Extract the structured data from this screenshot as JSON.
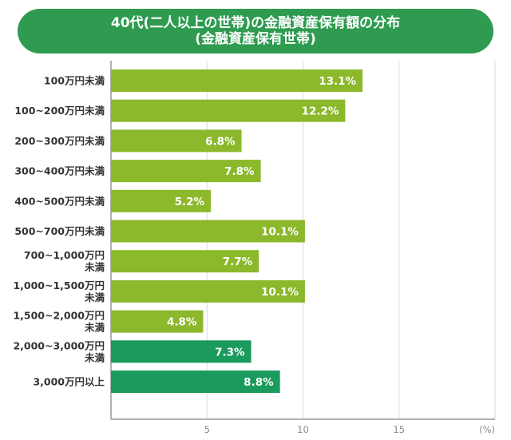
{
  "title": {
    "line1": "40代(二人以上の世帯)の金融資産保有額の分布",
    "line2": "(金融資産保有世帯)"
  },
  "chart_data": {
    "type": "bar",
    "orientation": "horizontal",
    "title": "40代(二人以上の世帯)の金融資産保有額の分布 (金融資産保有世帯)",
    "categories": [
      "100万円未満",
      "100~200万円未満",
      "200~300万円未満",
      "300~400万円未満",
      "400~500万円未満",
      "500~700万円未満",
      "700~1,000万円\n未満",
      "1,000~1,500万円\n未満",
      "1,500~2,000万円\n未満",
      "2,000~3,000万円\n未満",
      "3,000万円以上"
    ],
    "values": [
      13.1,
      12.2,
      6.8,
      7.8,
      5.2,
      10.1,
      7.7,
      10.1,
      4.8,
      7.3,
      8.8
    ],
    "value_labels": [
      "13.1%",
      "12.2%",
      "6.8%",
      "7.8%",
      "5.2%",
      "10.1%",
      "7.7%",
      "10.1%",
      "4.8%",
      "7.3%",
      "8.8%"
    ],
    "bar_colors": [
      "#8cb82c",
      "#8cb82c",
      "#8cb82c",
      "#8cb82c",
      "#8cb82c",
      "#8cb82c",
      "#8cb82c",
      "#8cb82c",
      "#8cb82c",
      "#1a9a5c",
      "#1a9a5c"
    ],
    "xticks": [
      "5",
      "10",
      "15"
    ],
    "xtick_values": [
      5,
      10,
      15
    ],
    "xunit": "(%)",
    "xlim": [
      0,
      20
    ],
    "grid": true
  },
  "colors": {
    "title_bg": "#2e9b50",
    "bar_light": "#8cb82c",
    "bar_dark": "#1a9a5c",
    "grid": "#d9d9d9",
    "axis": "#999999"
  }
}
